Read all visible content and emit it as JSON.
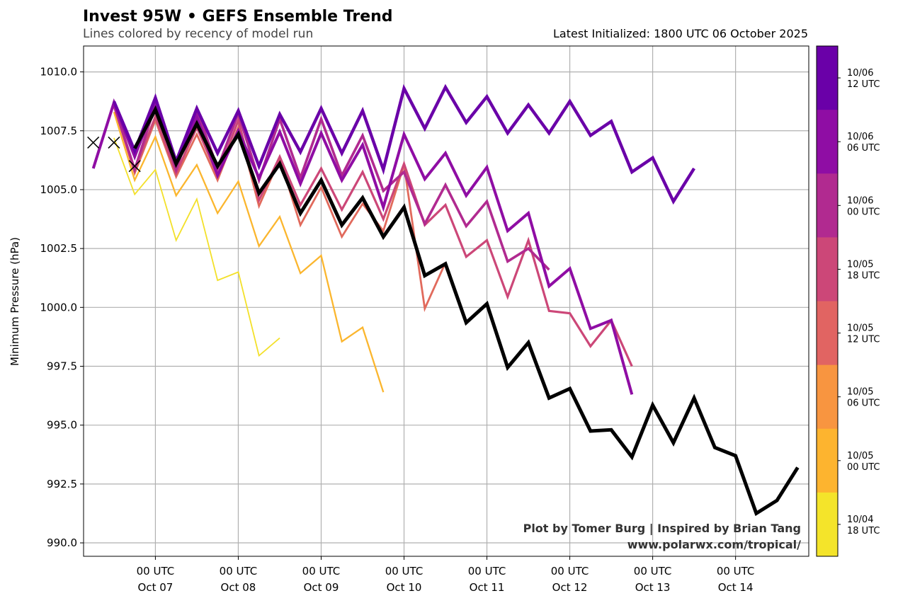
{
  "chart_data": {
    "type": "line",
    "title": "Invest 95W • GEFS Ensemble Trend",
    "subtitle": "Lines colored by recency of model run",
    "init_text": "Latest Initialized: 1800 UTC 06 October 2025",
    "ylabel": "Minimum Pressure (hPa)",
    "xlabel": "",
    "x_units": "hours since 00 UTC Oct 06",
    "xlim": [
      3.2,
      213.2
    ],
    "ylim": [
      989.43,
      1011.1
    ],
    "grid": true,
    "step_hours": 6,
    "yticks": [
      990.0,
      992.5,
      995.0,
      997.5,
      1000.0,
      1002.5,
      1005.0,
      1007.5,
      1010.0
    ],
    "ytick_labels": [
      "990.0",
      "992.5",
      "995.0",
      "997.5",
      "1000.0",
      "1002.5",
      "1005.0",
      "1007.5",
      "1010.0"
    ],
    "xticks": [
      {
        "hour": 24,
        "line1": "00 UTC",
        "line2": "Oct 07"
      },
      {
        "hour": 48,
        "line1": "00 UTC",
        "line2": "Oct 08"
      },
      {
        "hour": 72,
        "line1": "00 UTC",
        "line2": "Oct 09"
      },
      {
        "hour": 96,
        "line1": "00 UTC",
        "line2": "Oct 10"
      },
      {
        "hour": 120,
        "line1": "00 UTC",
        "line2": "Oct 11"
      },
      {
        "hour": 144,
        "line1": "00 UTC",
        "line2": "Oct 12"
      },
      {
        "hour": 168,
        "line1": "00 UTC",
        "line2": "Oct 13"
      },
      {
        "hour": 192,
        "line1": "00 UTC",
        "line2": "Oct 14"
      }
    ],
    "series": [
      {
        "name": "10/04 18 UTC",
        "color": "#f3e02a",
        "width": 1.8,
        "start_hour": 12,
        "values": [
          1007.2,
          1004.8,
          1005.85,
          1002.85,
          1004.6,
          1001.15,
          1001.5,
          997.95,
          998.7
        ]
      },
      {
        "name": "10/05 00 UTC",
        "color": "#fbb62e",
        "width": 2.3,
        "start_hour": 12,
        "values": [
          1008.3,
          1005.4,
          1007.25,
          1004.75,
          1006.05,
          1004.0,
          1005.35,
          1002.6,
          1003.85,
          1001.45,
          1002.2,
          998.55,
          999.15,
          996.4
        ]
      },
      {
        "name": "10/05 12 UTC",
        "color": "#e16a5c",
        "width": 2.8,
        "start_hour": 12,
        "values": [
          1008.55,
          1005.7,
          1007.95,
          1005.55,
          1007.35,
          1005.4,
          1007.65,
          1004.3,
          1006.3,
          1003.5,
          1005.1,
          1003.0,
          1004.4,
          1003.25,
          1006.05,
          999.95,
          1001.9
        ]
      },
      {
        "name": "10/05 18 UTC",
        "color": "#cc4778",
        "width": 3.2,
        "start_hour": 12,
        "values": [
          1008.55,
          1005.85,
          1008.1,
          1005.7,
          1007.65,
          1005.6,
          1007.95,
          1004.55,
          1006.4,
          1004.35,
          1005.9,
          1004.15,
          1005.75,
          1003.75,
          1006.1,
          1003.5,
          1004.35,
          1002.15,
          1002.85,
          1000.45,
          1002.85,
          999.85,
          999.75,
          998.35,
          999.45,
          997.5
        ]
      },
      {
        "name": "10/06 00 UTC",
        "color": "#b12a90",
        "width": 3.6,
        "start_hour": 12,
        "values": [
          1008.6,
          1005.85,
          1008.6,
          1005.85,
          1008.4,
          1005.9,
          1008.25,
          1005.4,
          1008.0,
          1005.5,
          1008.0,
          1005.6,
          1007.3,
          1004.95,
          1005.75,
          1003.55,
          1005.2,
          1003.45,
          1004.5,
          1001.95,
          1002.5,
          1001.6
        ]
      },
      {
        "name": "10/06 06 UTC",
        "color": "#8f0da4",
        "width": 4.0,
        "start_hour": 6,
        "values": [
          1005.9,
          1008.7,
          1006.4,
          1008.7,
          1006.1,
          1008.1,
          1005.6,
          1007.5,
          1005.5,
          1007.45,
          1005.25,
          1007.4,
          1005.4,
          1006.9,
          1004.25,
          1007.35,
          1005.45,
          1006.55,
          1004.75,
          1005.95,
          1003.25,
          1004.0,
          1000.9,
          1001.65,
          999.1,
          999.45,
          996.3
        ]
      },
      {
        "name": "10/06 12 UTC",
        "color": "#6a00a8",
        "width": 4.4,
        "start_hour": 12,
        "values": [
          1008.75,
          1006.65,
          1008.9,
          1006.2,
          1008.45,
          1006.55,
          1008.35,
          1006.0,
          1008.2,
          1006.6,
          1008.45,
          1006.55,
          1008.35,
          1005.85,
          1009.3,
          1007.6,
          1009.35,
          1007.85,
          1008.95,
          1007.4,
          1008.6,
          1007.4,
          1008.75,
          1007.3,
          1007.9,
          1005.75,
          1006.35,
          1004.5,
          1005.9
        ]
      },
      {
        "name": "10/06 18 UTC (latest)",
        "color": "#000000",
        "width": 5.0,
        "start_hour": 18,
        "values": [
          1006.75,
          1008.4,
          1006.1,
          1007.8,
          1006.0,
          1007.35,
          1004.85,
          1006.1,
          1004.0,
          1005.4,
          1003.5,
          1004.65,
          1003.0,
          1004.25,
          1001.35,
          1001.85,
          999.35,
          1000.15,
          997.45,
          998.5,
          996.15,
          996.55,
          994.75,
          994.8,
          993.65,
          995.85,
          994.25,
          996.15,
          994.05,
          993.7,
          991.25,
          991.8,
          993.2
        ]
      }
    ],
    "observed_markers": [
      {
        "hour": 6,
        "value": 1007.0
      },
      {
        "hour": 12,
        "value": 1007.0
      },
      {
        "hour": 18,
        "value": 1006.0
      }
    ],
    "colorbar": [
      {
        "line1": "10/06",
        "line2": "12 UTC",
        "color": "#6a00a8"
      },
      {
        "line1": "10/06",
        "line2": "06 UTC",
        "color": "#8f0da4"
      },
      {
        "line1": "10/06",
        "line2": "00 UTC",
        "color": "#b12a90"
      },
      {
        "line1": "10/05",
        "line2": "18 UTC",
        "color": "#cc4778"
      },
      {
        "line1": "10/05",
        "line2": "12 UTC",
        "color": "#e16462"
      },
      {
        "line1": "10/05",
        "line2": "06 UTC",
        "color": "#f89540"
      },
      {
        "line1": "10/05",
        "line2": "00 UTC",
        "color": "#fdb42f"
      },
      {
        "line1": "10/04",
        "line2": "18 UTC",
        "color": "#f4e42a"
      }
    ],
    "credit_line1": "Plot by Tomer Burg | Inspired by Brian Tang",
    "credit_line2": "www.polarwx.com/tropical/"
  }
}
